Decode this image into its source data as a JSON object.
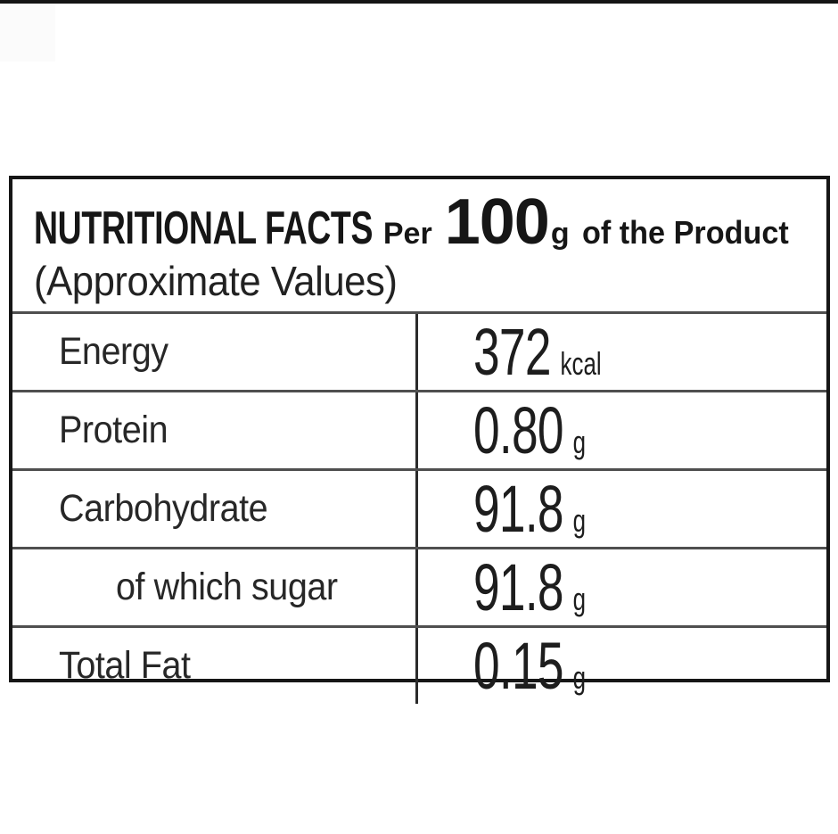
{
  "page": {
    "background_color": "#ffffff",
    "top_strip_color": "#141414",
    "watermark_color": "#fbfbfb"
  },
  "table": {
    "colors": {
      "outer_border": "#161616",
      "row_separator": "#4f4f4f",
      "column_divider": "#2b2b2b",
      "text": "#1f1f1f"
    },
    "header": {
      "title_main": "NUTRITIONAL FACTS",
      "per_label": "Per",
      "serving_size": "100",
      "serving_unit": "g",
      "suffix": "of the Product",
      "subtitle": "(Approximate Values)"
    },
    "rows": [
      {
        "label": "Energy",
        "value": "372",
        "unit": "kcal",
        "indent": false
      },
      {
        "label": "Protein",
        "value": "0.80",
        "unit": "g",
        "indent": false
      },
      {
        "label": "Carbohydrate",
        "value": "91.8",
        "unit": "g",
        "indent": false
      },
      {
        "label": "of which sugar",
        "value": "91.8",
        "unit": "g",
        "indent": true
      },
      {
        "label": "Total Fat",
        "value": "0.15",
        "unit": "g",
        "indent": false
      }
    ]
  }
}
